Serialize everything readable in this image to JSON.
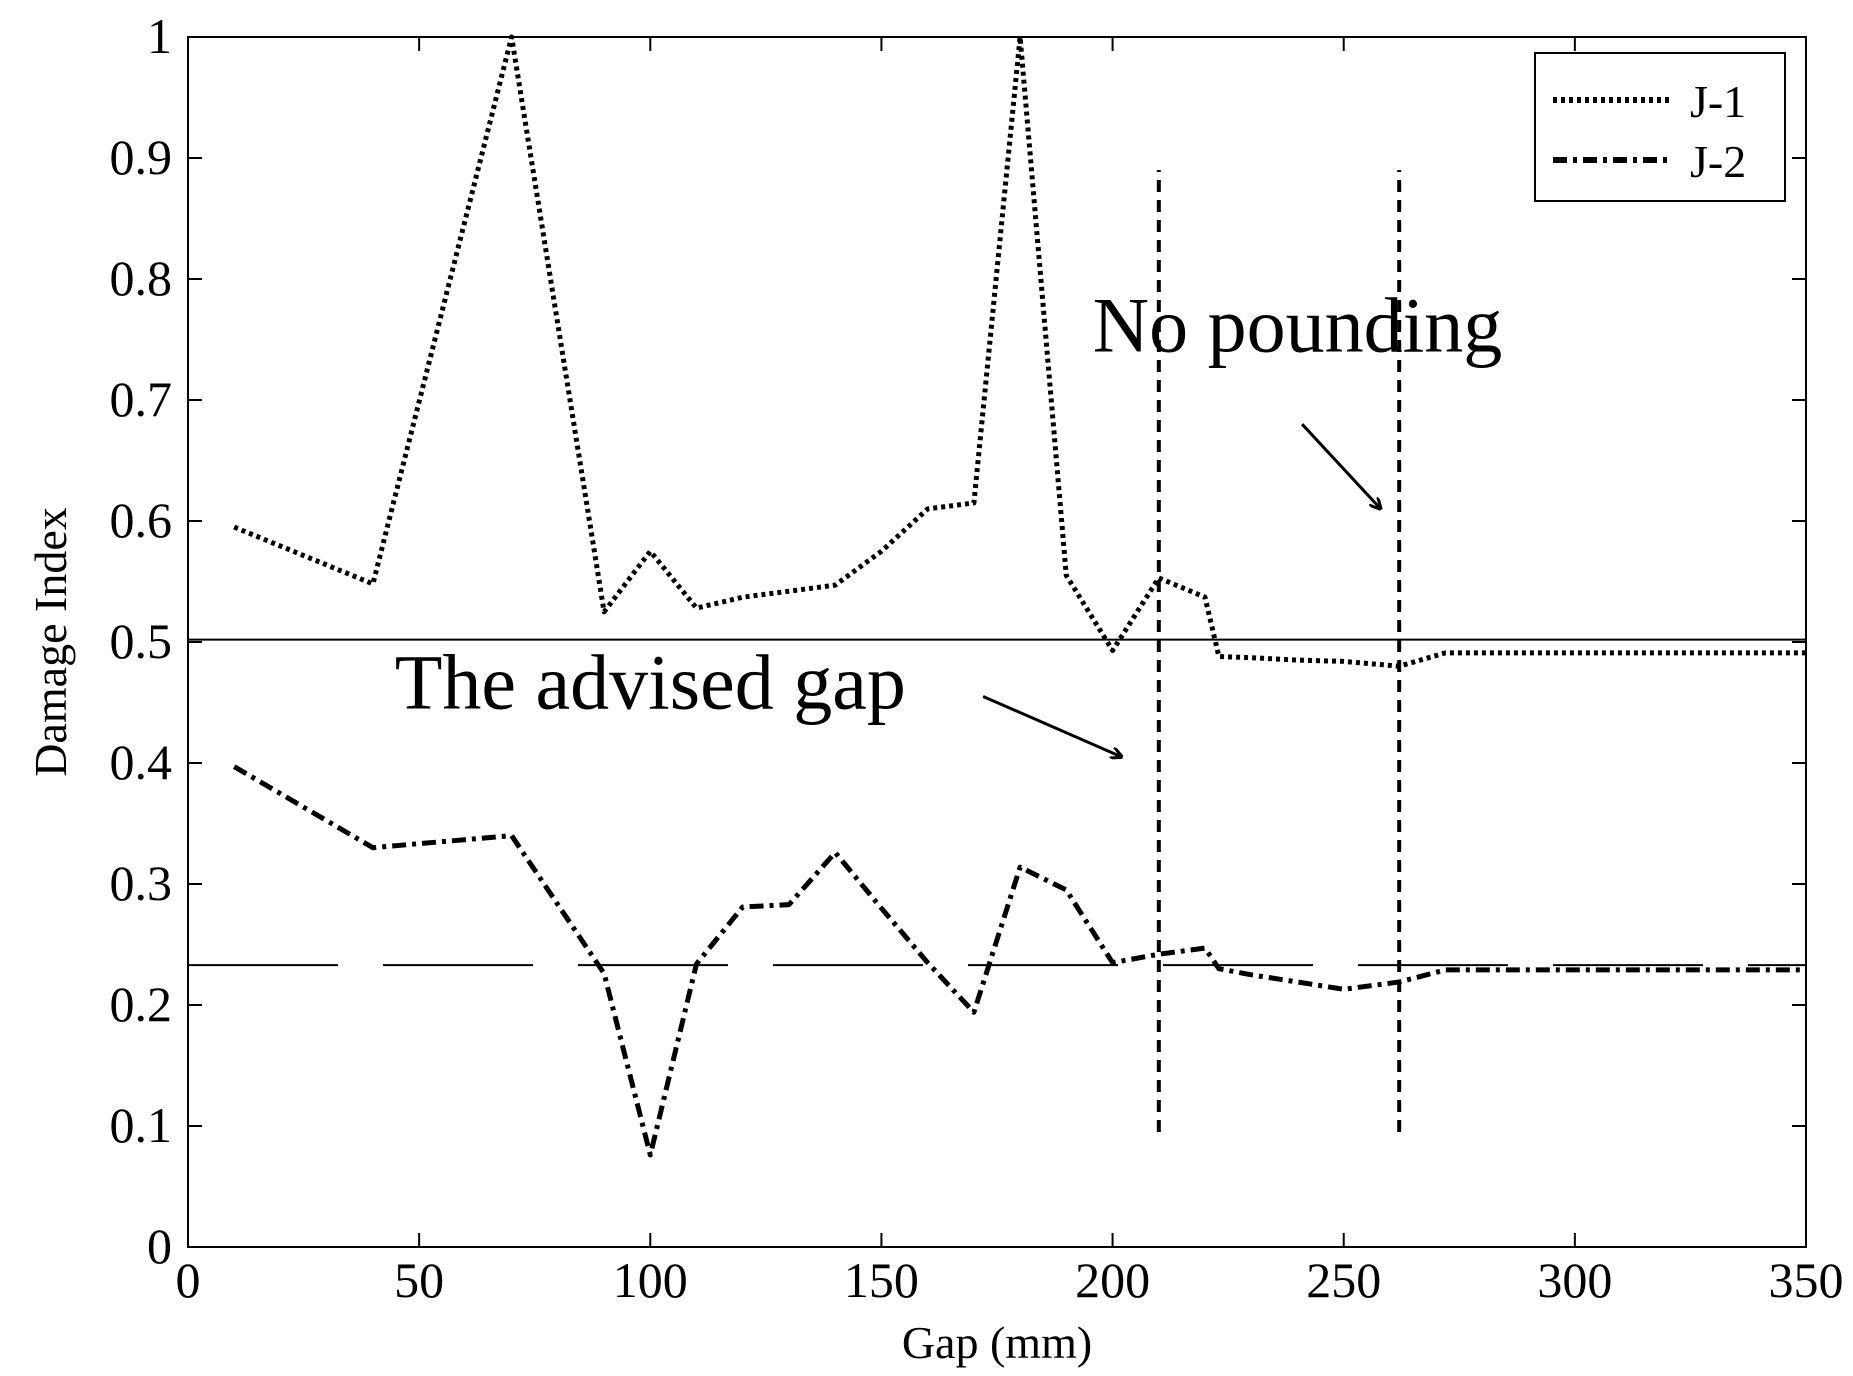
{
  "chart_data": {
    "type": "line",
    "title": "",
    "xlabel": "Gap (mm)",
    "ylabel": "Damage Index",
    "xlim": [
      0,
      350
    ],
    "ylim": [
      0,
      1
    ],
    "xticks": [
      "0",
      "50",
      "100",
      "150",
      "200",
      "250",
      "300",
      "350"
    ],
    "yticks": [
      "0",
      "0.1",
      "0.2",
      "0.3",
      "0.4",
      "0.5",
      "0.6",
      "0.7",
      "0.8",
      "0.9",
      "1"
    ],
    "grid": false,
    "legend_position": "top-right",
    "series": [
      {
        "name": "J-1",
        "line_style": "dotted",
        "x": [
          10,
          40,
          70,
          90,
          100,
          110,
          120,
          130,
          140,
          150,
          160,
          170,
          180,
          190,
          200,
          210,
          220,
          223,
          230,
          240,
          250,
          262,
          272,
          350
        ],
        "y": [
          0.595,
          0.548,
          1.0,
          0.525,
          0.575,
          0.528,
          0.537,
          0.542,
          0.547,
          0.575,
          0.61,
          0.615,
          1.0,
          0.555,
          0.493,
          0.553,
          0.537,
          0.488,
          0.487,
          0.485,
          0.484,
          0.48,
          0.491,
          0.491
        ]
      },
      {
        "name": "J-2",
        "line_style": "dash-dot",
        "x": [
          10,
          40,
          70,
          90,
          100,
          110,
          120,
          130,
          140,
          150,
          160,
          170,
          180,
          190,
          200,
          210,
          220,
          223,
          230,
          240,
          250,
          262,
          272,
          350
        ],
        "y": [
          0.397,
          0.33,
          0.34,
          0.226,
          0.076,
          0.234,
          0.281,
          0.283,
          0.326,
          0.28,
          0.235,
          0.194,
          0.314,
          0.295,
          0.235,
          0.242,
          0.247,
          0.23,
          0.225,
          0.219,
          0.213,
          0.219,
          0.229,
          0.229
        ]
      }
    ],
    "reference_lines": [
      {
        "orientation": "horizontal",
        "value": 0.502,
        "style": "solid"
      },
      {
        "orientation": "horizontal",
        "value": 0.233,
        "style": "long-dash"
      },
      {
        "orientation": "vertical",
        "value": 210,
        "from": 0.095,
        "to": 0.89,
        "style": "dashed"
      },
      {
        "orientation": "vertical",
        "value": 262,
        "from": 0.095,
        "to": 0.89,
        "style": "dashed"
      }
    ],
    "annotations": [
      {
        "text": "No pounding",
        "x": 240,
        "y": 0.74,
        "arrow_from": [
          241,
          0.68
        ],
        "arrow_to": [
          258,
          0.61
        ]
      },
      {
        "text": "The advised gap",
        "x": 100,
        "y": 0.445,
        "arrow_from": [
          172,
          0.455
        ],
        "arrow_to": [
          202,
          0.405
        ]
      }
    ]
  }
}
